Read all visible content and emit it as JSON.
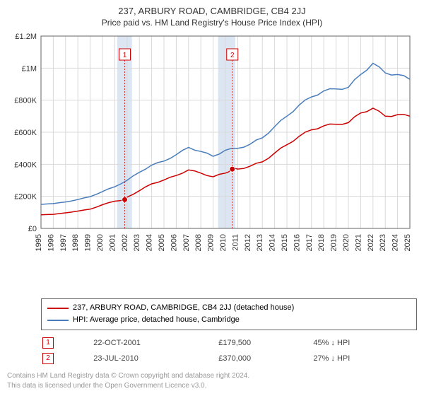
{
  "title": "237, ARBURY ROAD, CAMBRIDGE, CB4 2JJ",
  "subtitle": "Price paid vs. HM Land Registry's House Price Index (HPI)",
  "chart": {
    "type": "line",
    "background_color": "#ffffff",
    "plot_background": "#ffffff",
    "grid_color": "#d9d9d9",
    "axis_color": "#666666",
    "band_color": "#dce6f2",
    "band_ranges": [
      [
        2001.2,
        2002.4
      ],
      [
        2009.4,
        2010.8
      ]
    ],
    "xlim": [
      1995,
      2025
    ],
    "ylim": [
      0,
      1200000
    ],
    "xtick_step": 1,
    "yticks": [
      0,
      200000,
      400000,
      600000,
      800000,
      1000000,
      1200000
    ],
    "ytick_labels": [
      "£0",
      "£200K",
      "£400K",
      "£600K",
      "£800K",
      "£1M",
      "£1.2M"
    ],
    "xtick_labels": [
      "1995",
      "1996",
      "1997",
      "1998",
      "1999",
      "2000",
      "2001",
      "2002",
      "2003",
      "2004",
      "2005",
      "2006",
      "2007",
      "2008",
      "2009",
      "2010",
      "2011",
      "2012",
      "2013",
      "2014",
      "2015",
      "2016",
      "2017",
      "2018",
      "2019",
      "2020",
      "2021",
      "2022",
      "2023",
      "2024",
      "2025"
    ],
    "series": [
      {
        "name": "property",
        "label": "237, ARBURY ROAD, CAMBRIDGE, CB4 2JJ (detached house)",
        "color": "#cc0000",
        "line_width": 1.5,
        "data": [
          [
            1995,
            85000
          ],
          [
            1996,
            88000
          ],
          [
            1997,
            97000
          ],
          [
            1998,
            108000
          ],
          [
            1999,
            120000
          ],
          [
            2000,
            148000
          ],
          [
            2001,
            170000
          ],
          [
            2001.8,
            179500
          ],
          [
            2002,
            195000
          ],
          [
            2003,
            235000
          ],
          [
            2004,
            278000
          ],
          [
            2005,
            302000
          ],
          [
            2006,
            330000
          ],
          [
            2007,
            365000
          ],
          [
            2008,
            345000
          ],
          [
            2009,
            322000
          ],
          [
            2010,
            345000
          ],
          [
            2010.56,
            370000
          ],
          [
            2011,
            370000
          ],
          [
            2012,
            388000
          ],
          [
            2013,
            415000
          ],
          [
            2014,
            470000
          ],
          [
            2015,
            522000
          ],
          [
            2016,
            575000
          ],
          [
            2017,
            615000
          ],
          [
            2018,
            640000
          ],
          [
            2019,
            650000
          ],
          [
            2020,
            660000
          ],
          [
            2021,
            720000
          ],
          [
            2022,
            750000
          ],
          [
            2023,
            700000
          ],
          [
            2024,
            710000
          ],
          [
            2025,
            700000
          ]
        ]
      },
      {
        "name": "hpi",
        "label": "HPI: Average price, detached house, Cambridge",
        "color": "#4a7ebb",
        "line_width": 1,
        "data": [
          [
            1995,
            150000
          ],
          [
            1996,
            155000
          ],
          [
            1997,
            165000
          ],
          [
            1998,
            180000
          ],
          [
            1999,
            198000
          ],
          [
            2000,
            230000
          ],
          [
            2001,
            260000
          ],
          [
            2002,
            300000
          ],
          [
            2003,
            350000
          ],
          [
            2004,
            395000
          ],
          [
            2005,
            420000
          ],
          [
            2006,
            460000
          ],
          [
            2007,
            505000
          ],
          [
            2008,
            480000
          ],
          [
            2009,
            450000
          ],
          [
            2010,
            488000
          ],
          [
            2011,
            500000
          ],
          [
            2012,
            525000
          ],
          [
            2013,
            565000
          ],
          [
            2014,
            635000
          ],
          [
            2015,
            700000
          ],
          [
            2016,
            770000
          ],
          [
            2017,
            820000
          ],
          [
            2018,
            858000
          ],
          [
            2019,
            870000
          ],
          [
            2020,
            880000
          ],
          [
            2021,
            960000
          ],
          [
            2022,
            1030000
          ],
          [
            2023,
            970000
          ],
          [
            2024,
            960000
          ],
          [
            2025,
            930000
          ]
        ]
      }
    ],
    "sale_markers": [
      {
        "n": "1",
        "x": 2001.81,
        "y": 179500
      },
      {
        "n": "2",
        "x": 2010.56,
        "y": 370000
      }
    ]
  },
  "legend": {
    "items": [
      {
        "label": "237, ARBURY ROAD, CAMBRIDGE, CB4 2JJ (detached house)",
        "color": "#cc0000"
      },
      {
        "label": "HPI: Average price, detached house, Cambridge",
        "color": "#4a7ebb"
      }
    ]
  },
  "sales": [
    {
      "n": "1",
      "date": "22-OCT-2001",
      "price": "£179,500",
      "vs_hpi": "45% ↓ HPI"
    },
    {
      "n": "2",
      "date": "23-JUL-2010",
      "price": "£370,000",
      "vs_hpi": "27% ↓ HPI"
    }
  ],
  "footer": {
    "line1": "Contains HM Land Registry data © Crown copyright and database right 2024.",
    "line2": "This data is licensed under the Open Government Licence v3.0."
  }
}
